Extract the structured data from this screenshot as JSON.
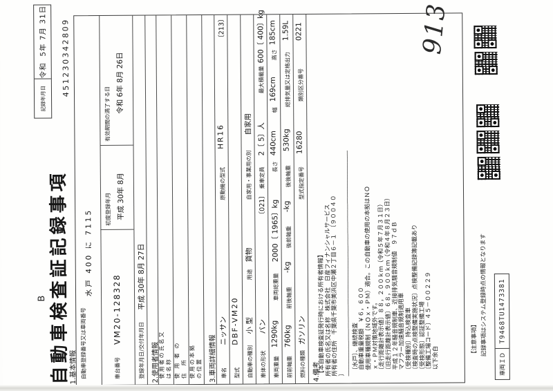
{
  "p": {
    "b_mark": "B",
    "title": "自動車検査証記録事項",
    "doc_number": "451230342809",
    "record_date_label": "記録年月日",
    "record_date_value": "令和  5年 7月 31日",
    "handwritten_note": "913"
  },
  "s1": {
    "heading": "1.基本情報",
    "reg_label": "自動車登録番号又は車両番号",
    "reg_value": "水戸 400 に 7115",
    "chassis_label": "車台番号",
    "chassis_value": "VM20-128328",
    "first_reg_label": "初度登録年月",
    "first_reg_value": "平成 30年 8月",
    "expiry_label": "有効期間の満了する日",
    "expiry_value": "令和 6年 8月 26日",
    "reg_date_label": "登録年月日/交付年月日",
    "reg_date_value": "平成 30年 8月 27日"
  },
  "s2": {
    "heading": "2.使用者情報",
    "rows": [
      {
        "label1": "使用者の氏名又",
        "label2": "は名称",
        "value": ""
      },
      {
        "label1": "使 用 者 の",
        "label2": "住  所",
        "value": ""
      },
      {
        "label1": "使用の本拠",
        "label2": "の位置",
        "value": ""
      }
    ]
  },
  "s3": {
    "heading": "3.車両詳細情報",
    "rows": [
      {
        "cells": [
          {
            "l": "車名",
            "v": "ニッサン"
          },
          {
            "l": "原動機の型式",
            "v": "HR16"
          },
          {
            "l": "",
            "v": "〔213〕"
          }
        ]
      },
      {
        "cells": [
          {
            "l": "型式",
            "v": "DBF-VM20"
          }
        ]
      },
      {
        "cells": [
          {
            "l": "自動車の種別",
            "v": "小 型"
          },
          {
            "l": "用途",
            "v": "貨物"
          },
          {
            "l": "自家用・事業用の別",
            "v": "自家用"
          }
        ]
      },
      {
        "cells": [
          {
            "l": "車体の形状",
            "v": "バン"
          },
          {
            "l": "",
            "v": "〔021〕"
          },
          {
            "l": "乗車定員",
            "v": "2〔 5〕人"
          },
          {
            "l": "最大積載量",
            "v": "600〔 400〕kg"
          }
        ]
      },
      {
        "cells": [
          {
            "l": "車両重量",
            "v": "1290kg"
          },
          {
            "l": "車両総重量",
            "v": "2000〔 1965〕kg"
          },
          {
            "l": "長さ",
            "v": "440cm"
          },
          {
            "l": "幅",
            "v": "169cm"
          },
          {
            "l": "高さ",
            "v": "185cm"
          }
        ]
      },
      {
        "cells": [
          {
            "l": "前前軸重",
            "v": "760kg"
          },
          {
            "l": "前後軸重",
            "v": "-kg"
          },
          {
            "l": "後前軸重",
            "v": "-kg"
          },
          {
            "l": "後後軸重",
            "v": "530kg"
          },
          {
            "l": "総排気量又は定格出力",
            "v": "1.59L"
          }
        ]
      },
      {
        "cells": [
          {
            "l": "燃料の種類",
            "v": "ガソリン"
          },
          {
            "l": "型式指定番号",
            "v": "16280"
          },
          {
            "l": "類別区分番号",
            "v": "0221"
          }
        ]
      }
    ]
  },
  "s4": {
    "heading": "4.備考",
    "lines": [
      "【本自動車検査証発行時における所有者情報】",
      "所有者の氏名又は名称　株式会社　日産フィナンシャルサービス",
      "所有者の住所　千葉県千葉市美浜区中瀬２丁目６－１　〔９００４０",
      "〕",
      "――――――――――――――――――――――――――――――――――――――",
      "　〔水戸〕、継続検査",
      "　自動車重量税額　￥６，６００",
      "　使用車種規制（ＮＯｘ・ＰＭ）適合。この自動車の使用の本拠はＮＯ",
      "　ｘ・ＰＭ対策地域外です。",
      "　〔走行距離計表示値〕８８，２００ｋｍ（令和５年７月３１日）",
      "　〔旧走行距離計表示値〕６８，９００ｋｍ（令和４年８月２３日）",
      "　平成１２年騒音規制車、近接排気騒音規制値　９７ｄＢ",
      "　マフラー加速騒音規制適用車",
      "　〔受検種別〕持込検査車",
      "　〔検査時の点検整備実施状況〕点検整備記録簿記載あり",
      "　〔受検形態〕認証整備工場",
      "　〔整備工場コード〕４５－００２２９",
      "　以下余白"
    ]
  },
  "f": {
    "notice_heading": "【注意事項】",
    "notice_text": "記録事項はシステム登録時点の情報となります",
    "vehicle_id_label": "車両ＩＤ",
    "vehicle_id_value": "T9468TU1473381",
    "qr_icon": "qr-code"
  }
}
